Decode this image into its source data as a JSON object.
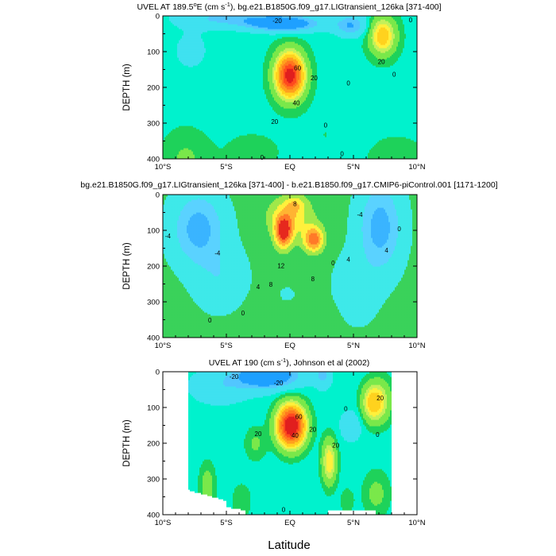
{
  "figure": {
    "xlabel": "Latitude"
  },
  "palette": {
    "c_m20": "#1ea0ff",
    "c_m10": "#52c6ff",
    "c_m5": "#3fe1f0",
    "c_0": "#00f2cd",
    "c_5": "#1ed25a",
    "c_10": "#7ae84a",
    "c_15": "#c3f05a",
    "c_20": "#fff03c",
    "c_30": "#ffd21e",
    "c_40": "#ffa01e",
    "c_50": "#ff781e",
    "c_60": "#ff4a1e",
    "c_70": "#e11e1e",
    "diff_neg4": "#3ab4ff",
    "diff_neg2": "#5ad2ff",
    "diff_0": "#3ee9e9",
    "diff_2": "#3ad25a",
    "diff_4": "#a0e84a",
    "diff_6": "#fff03c",
    "diff_8": "#ffb432",
    "diff_10": "#ff7a28",
    "diff_12": "#e6281e"
  },
  "chart_data": [
    {
      "type": "heatmap",
      "title_parts": [
        "UVEL AT 189.5",
        "o",
        "E (cm s",
        "-1",
        "), bg.e21.B1850G.f09_g17.LIGtransient_126ka [371-400]"
      ],
      "ylabel": "DEPTH (m)",
      "x_ticks": [
        "10°S",
        "5°S",
        "EQ",
        "5°N",
        "10°N"
      ],
      "x_tick_values": [
        -10,
        -5,
        0,
        5,
        10
      ],
      "y_ticks": [
        "0",
        "100",
        "200",
        "300",
        "400"
      ],
      "y_tick_values": [
        0,
        100,
        200,
        300,
        400
      ],
      "xlim": [
        -10,
        10
      ],
      "ylim": [
        400,
        0
      ],
      "field": "uvel_model",
      "extent": "full",
      "contour_labels": [
        {
          "text": "-20",
          "lat": -1.0,
          "depth": 18
        },
        {
          "text": "60",
          "lat": 0.6,
          "depth": 150
        },
        {
          "text": "20",
          "lat": 1.9,
          "depth": 178
        },
        {
          "text": "40",
          "lat": 0.5,
          "depth": 248
        },
        {
          "text": "20",
          "lat": -1.2,
          "depth": 300
        },
        {
          "text": "0",
          "lat": 2.8,
          "depth": 310
        },
        {
          "text": "0",
          "lat": -2.2,
          "depth": 400
        },
        {
          "text": "0",
          "lat": 4.6,
          "depth": 192
        },
        {
          "text": "20",
          "lat": 7.2,
          "depth": 132
        },
        {
          "text": "0",
          "lat": 8.2,
          "depth": 168
        },
        {
          "text": "0",
          "lat": 9.5,
          "depth": 15
        },
        {
          "text": "0",
          "lat": 4.1,
          "depth": 390
        }
      ]
    },
    {
      "type": "heatmap",
      "title_parts": [
        "bg.e21.B1850G.f09_g17.LIGtransient_126ka [371-400] - b.e21.B1850.f09_g17.CMIP6-piControl.001 [1171-1200]"
      ],
      "ylabel": "DEPTH (m)",
      "x_ticks": [
        "10°S",
        "5°S",
        "EQ",
        "5°N",
        "10°N"
      ],
      "x_tick_values": [
        -10,
        -5,
        0,
        5,
        10
      ],
      "y_ticks": [
        "0",
        "100",
        "200",
        "300",
        "400"
      ],
      "y_tick_values": [
        0,
        100,
        200,
        300,
        400
      ],
      "xlim": [
        -10,
        10
      ],
      "ylim": [
        400,
        0
      ],
      "field": "uvel_diff",
      "extent": "full",
      "contour_labels": [
        {
          "text": "-4",
          "lat": -9.6,
          "depth": 120
        },
        {
          "text": "-4",
          "lat": -5.7,
          "depth": 168
        },
        {
          "text": "8",
          "lat": 0.4,
          "depth": 30
        },
        {
          "text": "12",
          "lat": -0.7,
          "depth": 203
        },
        {
          "text": "8",
          "lat": -1.5,
          "depth": 255
        },
        {
          "text": "4",
          "lat": -2.5,
          "depth": 262
        },
        {
          "text": "8",
          "lat": 1.8,
          "depth": 240
        },
        {
          "text": "4",
          "lat": 4.6,
          "depth": 185
        },
        {
          "text": "-4",
          "lat": 5.5,
          "depth": 60
        },
        {
          "text": "4",
          "lat": 7.6,
          "depth": 160
        },
        {
          "text": "0",
          "lat": 3.4,
          "depth": 195
        },
        {
          "text": "0",
          "lat": 8.6,
          "depth": 100
        },
        {
          "text": "0",
          "lat": -3.7,
          "depth": 335
        },
        {
          "text": "0",
          "lat": -6.3,
          "depth": 355
        }
      ]
    },
    {
      "type": "heatmap",
      "title_parts": [
        "UVEL AT 190 (cm s",
        "-1",
        "), Johnson et al (2002)"
      ],
      "ylabel": "DEPTH (m)",
      "x_ticks": [
        "10°S",
        "5°S",
        "EQ",
        "5°N",
        "10°N"
      ],
      "x_tick_values": [
        -10,
        -5,
        0,
        5,
        10
      ],
      "y_ticks": [
        "0",
        "100",
        "200",
        "300",
        "400"
      ],
      "y_tick_values": [
        0,
        100,
        200,
        300,
        400
      ],
      "xlim": [
        -10,
        10
      ],
      "ylim": [
        400,
        0
      ],
      "field": "uvel_obs",
      "extent": "observations: lat -8 to 8, missing data deep on the flanks",
      "contour_labels": [
        {
          "text": "-20",
          "lat": -4.4,
          "depth": 18
        },
        {
          "text": "-20",
          "lat": -0.9,
          "depth": 35
        },
        {
          "text": "60",
          "lat": 0.7,
          "depth": 130
        },
        {
          "text": "20",
          "lat": 1.8,
          "depth": 165
        },
        {
          "text": "40",
          "lat": 0.4,
          "depth": 182
        },
        {
          "text": "20",
          "lat": -2.5,
          "depth": 178
        },
        {
          "text": "20",
          "lat": 3.6,
          "depth": 210
        },
        {
          "text": "20",
          "lat": 7.1,
          "depth": 78
        },
        {
          "text": "0",
          "lat": 4.4,
          "depth": 108
        },
        {
          "text": "0",
          "lat": 6.9,
          "depth": 180
        },
        {
          "text": "0",
          "lat": -0.5,
          "depth": 390
        }
      ]
    }
  ]
}
